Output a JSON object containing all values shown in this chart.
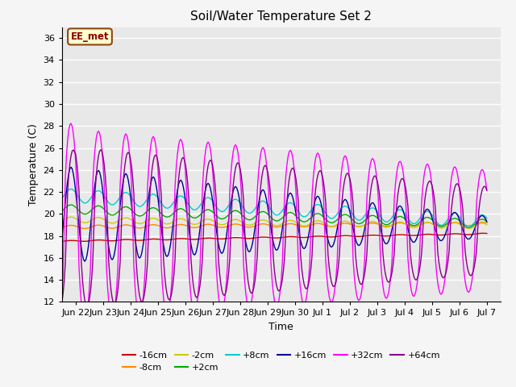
{
  "title": "Soil/Water Temperature Set 2",
  "xlabel": "Time",
  "ylabel": "Temperature (C)",
  "ylim": [
    12,
    37
  ],
  "bg_color": "#e8e8e8",
  "annotation_text": "EE_met",
  "annotation_bg": "#ffffcc",
  "annotation_border": "#8B4513",
  "series_order": [
    "-16cm",
    "-8cm",
    "-2cm",
    "+2cm",
    "+8cm",
    "+16cm",
    "+32cm",
    "+64cm"
  ],
  "colors": {
    "-16cm": "#cc0000",
    "-8cm": "#ff8800",
    "-2cm": "#cccc00",
    "+2cm": "#00aa00",
    "+8cm": "#00cccc",
    "+16cm": "#000099",
    "+32cm": "#ff00ff",
    "+64cm": "#880088"
  },
  "ytick_vals": [
    12,
    14,
    16,
    18,
    20,
    22,
    24,
    26,
    28,
    30,
    32,
    34,
    36
  ],
  "xtick_positions": [
    1,
    2,
    3,
    4,
    5,
    6,
    7,
    8,
    9,
    10,
    11,
    12,
    13,
    14,
    15,
    16
  ],
  "xtick_labels": [
    "Jun 22",
    "Jun 23",
    "Jun 24",
    "Jun 25",
    "Jun 26",
    "Jun 27",
    "Jun 28",
    "Jun 29",
    "Jun 30",
    "Jul 1",
    "Jul 2",
    "Jul 3",
    "Jul 4",
    "Jul 5",
    "Jul 6",
    "Jul 7"
  ],
  "xlim": [
    0.5,
    16.5
  ]
}
